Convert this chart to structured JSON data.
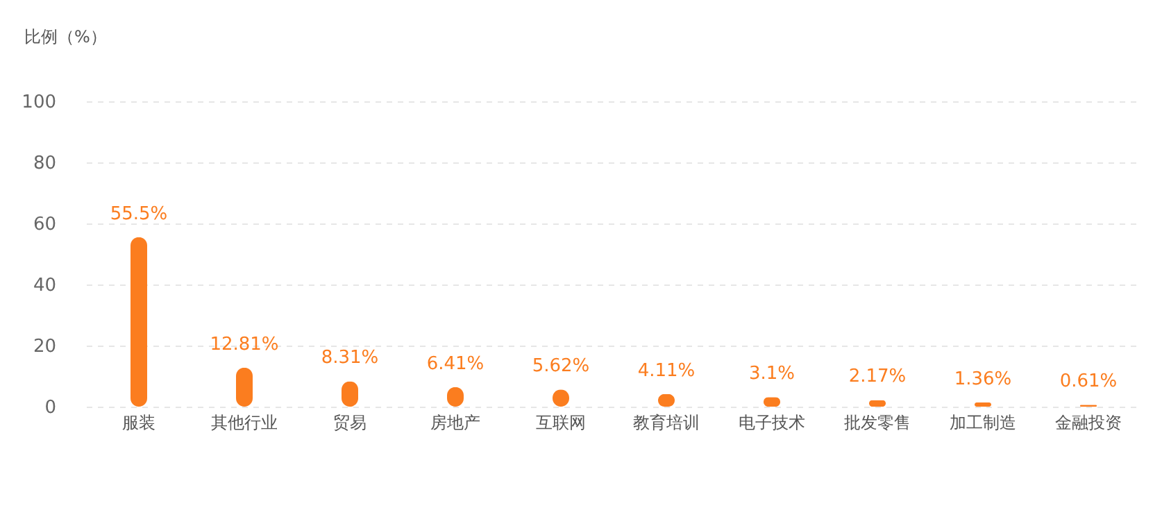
{
  "chart_data": {
    "type": "bar",
    "ylabel": "比例（%）",
    "categories": [
      "服装",
      "其他行业",
      "贸易",
      "房地产",
      "互联网",
      "教育培训",
      "电子技术",
      "批发零售",
      "加工制造",
      "金融投资"
    ],
    "values": [
      55.5,
      12.81,
      8.31,
      6.41,
      5.62,
      4.11,
      3.1,
      2.17,
      1.36,
      0.61
    ],
    "value_labels": [
      "55.5%",
      "12.81%",
      "8.31%",
      "6.41%",
      "5.62%",
      "4.11%",
      "3.1%",
      "2.17%",
      "1.36%",
      "0.61%"
    ],
    "color": "#fb7d1f",
    "ylim": [
      0,
      100
    ],
    "yticks": [
      0,
      20,
      40,
      60,
      80,
      100
    ],
    "grid": "y"
  }
}
